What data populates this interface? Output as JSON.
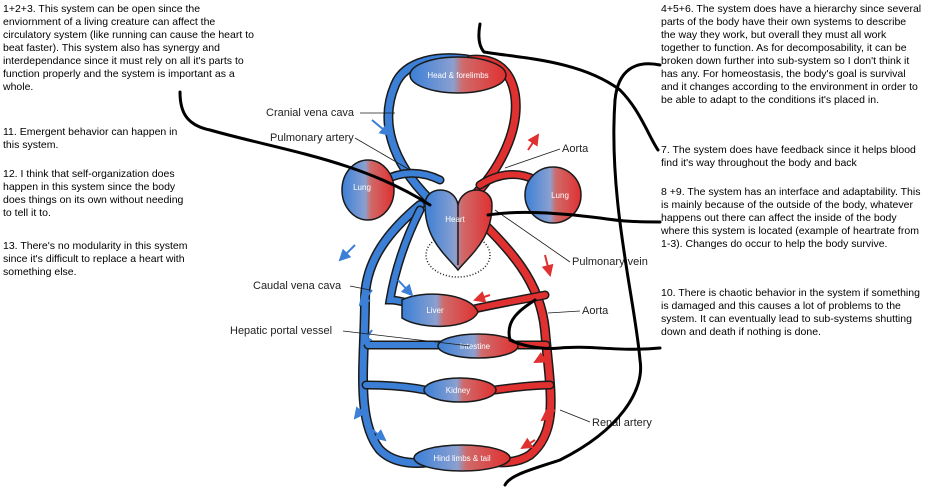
{
  "notes": {
    "left": [
      "1+2+3. This system can be open since the enviornment of a living creature can affect the circulatory system (like running can cause the heart to beat faster). This system also has synergy and interdependance since it must rely on all it's parts to function properly and the system is important as a whole.",
      "11. Emergent behavior can happen in this system.",
      "12. I think that self-organization does happen in this system since the body does things on its own without needing to tell it to.",
      "13. There's no modularity in this system since it's difficult to replace a heart with something else."
    ],
    "right": [
      "4+5+6. The system does have a hierarchy since several parts of the body have their own systems to describe the way they work, but overall they must all work together to function. As for decomposability, it can be broken down further into sub-system so I don't think it has any. For homeostasis, the body's goal is survival and it changes according to the environment in order to be able to adapt to the conditions it's placed in.",
      "7. The system does have feedback since it helps blood find it's way throughout the body and back",
      "8 +9. The system has an interface and adaptability. This is mainly because of the outside of the body, whatever happens out there can affect the inside of the body where this system is located (example of heartrate from 1-3). Changes do occur to help the body survive.",
      "10. There is chaotic behavior in the system if something is damaged and this causes a lot of problems to the system. It can eventually lead to sub-systems shutting down and death if nothing is done."
    ]
  },
  "labels": {
    "cranial_vena_cava": "Cranial vena cava",
    "pulmonary_artery": "Pulmonary artery",
    "aorta_top": "Aorta",
    "pulmonary_vein": "Pulmonary vein",
    "caudal_vena_cava": "Caudal vena cava",
    "aorta_bottom": "Aorta",
    "hepatic_portal_vessel": "Hepatic portal vessel",
    "renal_artery": "Renal artery"
  },
  "organs": {
    "head": "Head & forelimbs",
    "lung_left": "Lung",
    "lung_right": "Lung",
    "heart": "Heart",
    "liver": "Liver",
    "intestine": "Intestine",
    "kidney": "Kidney",
    "hind": "Hind limbs & tail"
  },
  "colors": {
    "oxygenated": "#e03030",
    "deoxygenated": "#3b7fd6",
    "vessel_outline": "#1a1a1a",
    "annotation_line": "#000000"
  }
}
